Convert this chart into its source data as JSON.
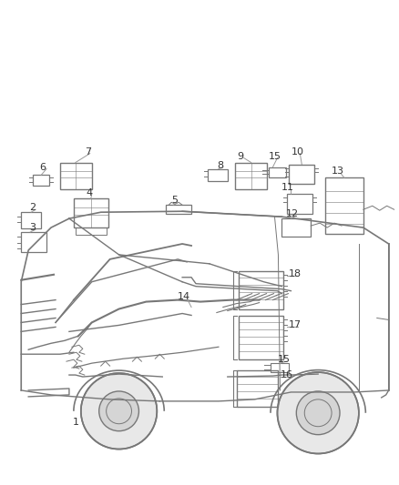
{
  "bg_color": "#ffffff",
  "line_color": "#666666",
  "fig_width": 4.38,
  "fig_height": 5.33,
  "dpi": 100,
  "van": {
    "body_color": "#cccccc",
    "line_width": 1.2
  }
}
